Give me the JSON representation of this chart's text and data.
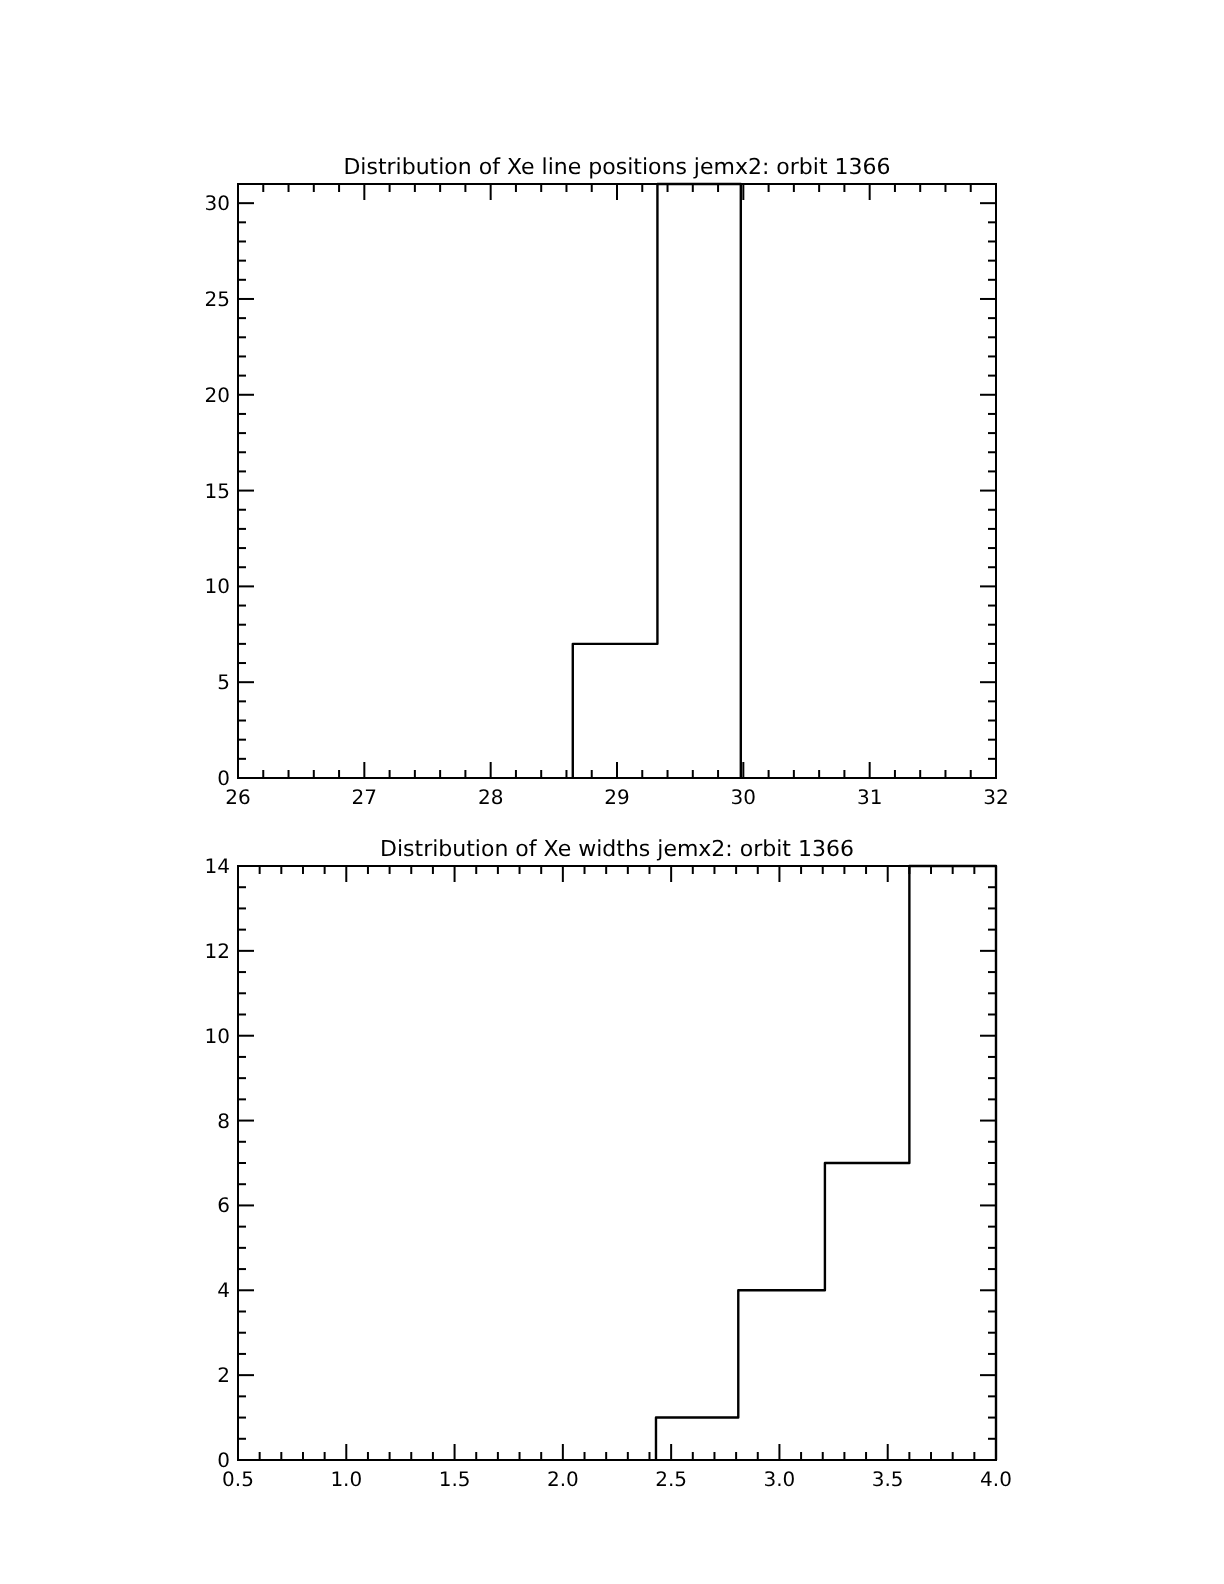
{
  "chart_data": [
    {
      "type": "histogram",
      "title": "Distribution of Xe line positions jemx2: orbit 1366",
      "bins": [
        28.65,
        29.32,
        29.98
      ],
      "values": [
        7,
        31
      ],
      "color": "#000000",
      "xlim": [
        26,
        32
      ],
      "ylim": [
        0,
        31
      ],
      "xticks": [
        26,
        {
          "value": 26.2,
          "label": null
        },
        {
          "value": 26.4,
          "label": null
        },
        {
          "value": 26.6,
          "label": null
        },
        {
          "value": 26.8,
          "label": null
        },
        27,
        {
          "value": 27.2,
          "label": null
        },
        {
          "value": 27.4,
          "label": null
        },
        {
          "value": 27.6,
          "label": null
        },
        {
          "value": 27.8,
          "label": null
        },
        28,
        {
          "value": 28.2,
          "label": null
        },
        {
          "value": 28.4,
          "label": null
        },
        {
          "value": 28.6,
          "label": null
        },
        {
          "value": 28.8,
          "label": null
        },
        29,
        {
          "value": 29.2,
          "label": null
        },
        {
          "value": 29.4,
          "label": null
        },
        {
          "value": 29.6,
          "label": null
        },
        {
          "value": 29.8,
          "label": null
        },
        30,
        {
          "value": 30.2,
          "label": null
        },
        {
          "value": 30.4,
          "label": null
        },
        {
          "value": 30.6,
          "label": null
        },
        {
          "value": 30.8,
          "label": null
        },
        31,
        {
          "value": 31.2,
          "label": null
        },
        {
          "value": 31.4,
          "label": null
        },
        {
          "value": 31.6,
          "label": null
        },
        {
          "value": 31.8,
          "label": null
        },
        32
      ],
      "yticks": [
        0,
        {
          "value": 1,
          "label": null
        },
        {
          "value": 2,
          "label": null
        },
        {
          "value": 3,
          "label": null
        },
        {
          "value": 4,
          "label": null
        },
        5,
        {
          "value": 6,
          "label": null
        },
        {
          "value": 7,
          "label": null
        },
        {
          "value": 8,
          "label": null
        },
        {
          "value": 9,
          "label": null
        },
        10,
        {
          "value": 11,
          "label": null
        },
        {
          "value": 12,
          "label": null
        },
        {
          "value": 13,
          "label": null
        },
        {
          "value": 14,
          "label": null
        },
        15,
        {
          "value": 16,
          "label": null
        },
        {
          "value": 17,
          "label": null
        },
        {
          "value": 18,
          "label": null
        },
        {
          "value": 19,
          "label": null
        },
        20,
        {
          "value": 21,
          "label": null
        },
        {
          "value": 22,
          "label": null
        },
        {
          "value": 23,
          "label": null
        },
        {
          "value": 24,
          "label": null
        },
        25,
        {
          "value": 26,
          "label": null
        },
        {
          "value": 27,
          "label": null
        },
        {
          "value": 28,
          "label": null
        },
        {
          "value": 29,
          "label": null
        },
        30,
        {
          "value": 31,
          "label": null
        }
      ]
    },
    {
      "type": "histogram",
      "title": "Distribution of Xe widths jemx2: orbit 1366",
      "bins": [
        2.43,
        2.81,
        3.21,
        3.6,
        4.0
      ],
      "values": [
        1,
        4,
        7,
        14
      ],
      "color": "#000000",
      "xlim": [
        0.5,
        4.0
      ],
      "ylim": [
        0,
        14
      ],
      "xticks": [
        {
          "value": 0.5,
          "label": "0.5"
        },
        {
          "value": 0.6,
          "label": null
        },
        {
          "value": 0.7,
          "label": null
        },
        {
          "value": 0.8,
          "label": null
        },
        {
          "value": 0.9,
          "label": null
        },
        {
          "value": 1,
          "label": "1.0"
        },
        {
          "value": 1.1,
          "label": null
        },
        {
          "value": 1.2,
          "label": null
        },
        {
          "value": 1.3,
          "label": null
        },
        {
          "value": 1.4,
          "label": null
        },
        1.5,
        {
          "value": 1.6,
          "label": null
        },
        {
          "value": 1.7,
          "label": null
        },
        {
          "value": 1.8,
          "label": null
        },
        {
          "value": 1.9,
          "label": null
        },
        {
          "value": 2,
          "label": "2.0"
        },
        {
          "value": 2.1,
          "label": null
        },
        {
          "value": 2.2,
          "label": null
        },
        {
          "value": 2.3,
          "label": null
        },
        {
          "value": 2.4,
          "label": null
        },
        2.5,
        {
          "value": 2.6,
          "label": null
        },
        {
          "value": 2.7,
          "label": null
        },
        {
          "value": 2.8,
          "label": null
        },
        {
          "value": 2.9,
          "label": null
        },
        {
          "value": 3,
          "label": "3.0"
        },
        {
          "value": 3.1,
          "label": null
        },
        {
          "value": 3.2,
          "label": null
        },
        {
          "value": 3.3,
          "label": null
        },
        {
          "value": 3.4,
          "label": null
        },
        3.5,
        {
          "value": 3.6,
          "label": null
        },
        {
          "value": 3.7,
          "label": null
        },
        {
          "value": 3.8,
          "label": null
        },
        {
          "value": 3.9,
          "label": null
        },
        {
          "value": 4,
          "label": "4.0"
        }
      ],
      "yticks": [
        0,
        {
          "value": 0.5,
          "label": null
        },
        {
          "value": 1,
          "label": null
        },
        {
          "value": 1.5,
          "label": null
        },
        2,
        {
          "value": 2.5,
          "label": null
        },
        {
          "value": 3,
          "label": null
        },
        {
          "value": 3.5,
          "label": null
        },
        4,
        {
          "value": 4.5,
          "label": null
        },
        {
          "value": 5,
          "label": null
        },
        {
          "value": 5.5,
          "label": null
        },
        6,
        {
          "value": 6.5,
          "label": null
        },
        {
          "value": 7,
          "label": null
        },
        {
          "value": 7.5,
          "label": null
        },
        8,
        {
          "value": 8.5,
          "label": null
        },
        {
          "value": 9,
          "label": null
        },
        {
          "value": 9.5,
          "label": null
        },
        10,
        {
          "value": 10.5,
          "label": null
        },
        {
          "value": 11,
          "label": null
        },
        {
          "value": 11.5,
          "label": null
        },
        12,
        {
          "value": 12.5,
          "label": null
        },
        {
          "value": 13,
          "label": null
        },
        {
          "value": 13.5,
          "label": null
        },
        14
      ]
    }
  ]
}
